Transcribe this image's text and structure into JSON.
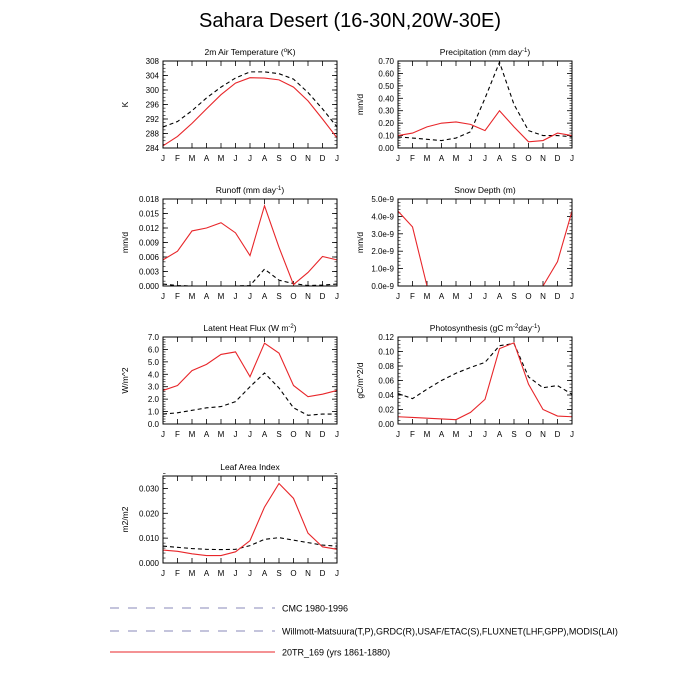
{
  "title": "Sahara Desert (16-30N,20W-30E)",
  "months": [
    "J",
    "F",
    "M",
    "A",
    "M",
    "J",
    "J",
    "A",
    "S",
    "O",
    "N",
    "D",
    "J"
  ],
  "colors": {
    "model": "#e8262a",
    "obs": "#000000",
    "legend_dash": "#8a8ab8"
  },
  "legend": [
    {
      "label": "CMC 1980-1996",
      "style": "dashed-grey"
    },
    {
      "label": "Willmott-Matsuura(T,P),GRDC(R),USAF/ETAC(S),FLUXNET(LHF,GPP),MODIS(LAI)",
      "style": "dashed-blue"
    },
    {
      "label": "20TR_169 (yrs 1861-1880)",
      "style": "solid-red"
    }
  ],
  "chart_data": [
    {
      "type": "line",
      "title": "2m Air Temperature (",
      "title_sup": "o",
      "title_tail": "K)",
      "ylabel": "K",
      "ylim": [
        284,
        308
      ],
      "yticks": [
        "284",
        "288",
        "292",
        "296",
        "300",
        "304",
        "308"
      ],
      "ytick_values": [
        284,
        288,
        292,
        296,
        300,
        304,
        308
      ],
      "minor_step": 1,
      "series": [
        {
          "role": "obs",
          "values": [
            289.8,
            291.3,
            294.3,
            297.8,
            300.8,
            303.3,
            305.0,
            305.0,
            304.5,
            303.0,
            299.3,
            294.8,
            289.8
          ]
        },
        {
          "role": "model",
          "values": [
            284.6,
            287.2,
            290.8,
            294.8,
            298.7,
            301.9,
            303.4,
            303.3,
            302.8,
            300.8,
            297.0,
            292.0,
            286.8
          ]
        }
      ]
    },
    {
      "type": "line",
      "title": "Precipitation (mm day",
      "title_sup": "-1",
      "title_tail": ")",
      "ylabel": "mm/d",
      "ylim": [
        0,
        0.7
      ],
      "yticks": [
        "0.00",
        "0.10",
        "0.20",
        "0.30",
        "0.40",
        "0.50",
        "0.60",
        "0.70"
      ],
      "ytick_values": [
        0,
        0.1,
        0.2,
        0.3,
        0.4,
        0.5,
        0.6,
        0.7
      ],
      "minor_step": 0.02,
      "series": [
        {
          "role": "obs",
          "values": [
            0.09,
            0.08,
            0.07,
            0.06,
            0.08,
            0.13,
            0.4,
            0.69,
            0.35,
            0.14,
            0.1,
            0.1,
            0.09
          ]
        },
        {
          "role": "model",
          "values": [
            0.1,
            0.12,
            0.17,
            0.2,
            0.21,
            0.19,
            0.14,
            0.3,
            0.17,
            0.05,
            0.06,
            0.12,
            0.1
          ]
        }
      ]
    },
    {
      "type": "line",
      "title": "Runoff (mm day",
      "title_sup": "-1",
      "title_tail": ")",
      "ylabel": "mm/d",
      "ylim": [
        0,
        0.018
      ],
      "yticks": [
        "0.000",
        "0.003",
        "0.006",
        "0.009",
        "0.012",
        "0.015",
        "0.018"
      ],
      "ytick_values": [
        0,
        0.003,
        0.006,
        0.009,
        0.012,
        0.015,
        0.018
      ],
      "minor_step": 0.001,
      "series": [
        {
          "role": "obs",
          "values": [
            0.0004,
            0.0001,
            0.0,
            0.0,
            0.0,
            0.0,
            0.0001,
            0.0035,
            0.0012,
            0.0005,
            0.0001,
            0.0002,
            0.0004
          ]
        },
        {
          "role": "model",
          "values": [
            0.0054,
            0.0072,
            0.0114,
            0.012,
            0.0131,
            0.011,
            0.0063,
            0.0166,
            0.008,
            0.0003,
            0.0028,
            0.0061,
            0.0054
          ]
        }
      ]
    },
    {
      "type": "line",
      "title": "Snow Depth (m)",
      "title_sup": "",
      "title_tail": "",
      "ylabel": "mm/d",
      "ylim": [
        0,
        5e-09
      ],
      "yticks": [
        "0.0e-9",
        "1.0e-9",
        "2.0e-9",
        "3.0e-9",
        "4.0e-9",
        "5.0e-9"
      ],
      "ytick_values": [
        0,
        1e-09,
        2e-09,
        3e-09,
        4e-09,
        5e-09
      ],
      "minor_step": 2e-10,
      "series": [
        {
          "role": "model",
          "values": [
            4.3e-09,
            3.4e-09,
            0,
            0,
            0,
            0,
            0,
            0,
            0,
            0,
            0,
            1.4e-09,
            4.3e-09
          ]
        }
      ]
    },
    {
      "type": "line",
      "title": "Latent Heat Flux (W m",
      "title_sup": "-2",
      "title_tail": ")",
      "ylabel": "W/m^2",
      "ylim": [
        0,
        7
      ],
      "yticks": [
        "0.0",
        "1.0",
        "2.0",
        "3.0",
        "4.0",
        "5.0",
        "6.0",
        "7.0"
      ],
      "ytick_values": [
        0,
        1,
        2,
        3,
        4,
        5,
        6,
        7
      ],
      "minor_step": 0.2,
      "series": [
        {
          "role": "obs",
          "values": [
            0.8,
            0.9,
            1.1,
            1.3,
            1.4,
            1.8,
            3.0,
            4.1,
            2.9,
            1.3,
            0.7,
            0.8,
            0.8
          ]
        },
        {
          "role": "model",
          "values": [
            2.7,
            3.1,
            4.3,
            4.8,
            5.6,
            5.8,
            3.8,
            6.5,
            5.7,
            3.1,
            2.2,
            2.4,
            2.7
          ]
        }
      ]
    },
    {
      "type": "line",
      "title": "Photosynthesis (gC m",
      "title_sup": "-2",
      "title_tail": "day",
      "title_sup2": "-1",
      "title_tail2": ")",
      "ylabel": "gC/m^2/d",
      "ylim": [
        0,
        0.12
      ],
      "yticks": [
        "0.00",
        "0.02",
        "0.04",
        "0.06",
        "0.08",
        "0.10",
        "0.12"
      ],
      "ytick_values": [
        0,
        0.02,
        0.04,
        0.06,
        0.08,
        0.1,
        0.12
      ],
      "minor_step": 0.005,
      "series": [
        {
          "role": "obs",
          "values": [
            0.042,
            0.035,
            0.048,
            0.06,
            0.07,
            0.078,
            0.085,
            0.108,
            0.111,
            0.065,
            0.05,
            0.053,
            0.041
          ]
        },
        {
          "role": "model",
          "values": [
            0.01,
            0.009,
            0.008,
            0.007,
            0.006,
            0.016,
            0.034,
            0.104,
            0.112,
            0.055,
            0.02,
            0.011,
            0.01
          ]
        }
      ]
    },
    {
      "type": "line",
      "title": "Leaf Area Index",
      "title_sup": "",
      "title_tail": "",
      "ylabel": "m2/m2",
      "ylim": [
        0,
        0.035
      ],
      "yticks": [
        "0.000",
        "0.010",
        "0.020",
        "0.030"
      ],
      "ytick_values": [
        0,
        0.01,
        0.02,
        0.03
      ],
      "minor_step": 0.002,
      "series": [
        {
          "role": "obs",
          "values": [
            0.0068,
            0.0063,
            0.0058,
            0.0055,
            0.0054,
            0.0055,
            0.007,
            0.0095,
            0.0102,
            0.0092,
            0.0082,
            0.0072,
            0.0068
          ]
        },
        {
          "role": "model",
          "values": [
            0.0052,
            0.0047,
            0.0037,
            0.003,
            0.003,
            0.0045,
            0.009,
            0.0225,
            0.032,
            0.026,
            0.012,
            0.0065,
            0.0055
          ]
        }
      ]
    }
  ]
}
